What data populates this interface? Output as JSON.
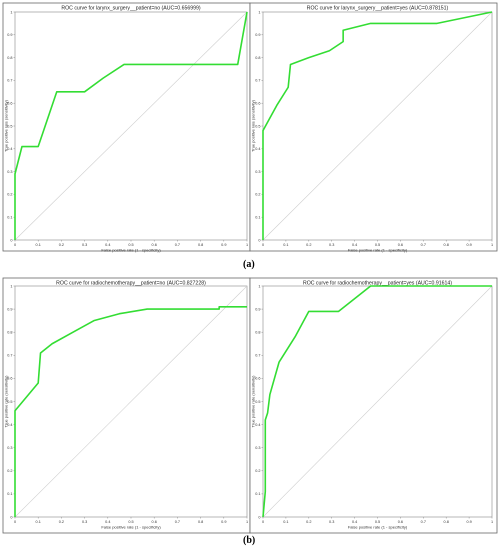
{
  "figure": {
    "panel_labels": [
      "(a)",
      "(b)"
    ]
  },
  "chart_data": [
    {
      "type": "line",
      "title": "ROC curve for larynx_surgery__patient=no (AUC=0.656999)",
      "xlabel": "False positive rate (1 - specificity)",
      "ylabel": "True positive rate (sensitivity)",
      "xlim": [
        0,
        1
      ],
      "ylim": [
        0,
        1
      ],
      "xticks": [
        "0",
        "0.1",
        "0.2",
        "0.3",
        "0.4",
        "0.5",
        "0.6",
        "0.7",
        "0.8",
        "0.9",
        "1"
      ],
      "yticks": [
        "0",
        "0.1",
        "0.2",
        "0.3",
        "0.4",
        "0.5",
        "0.6",
        "0.7",
        "0.8",
        "0.9",
        "1"
      ],
      "grid": false,
      "diagonal": true,
      "series": [
        {
          "color": "#33dd33",
          "x": [
            0,
            0,
            0.03,
            0.1,
            0.12,
            0.18,
            0.3,
            0.38,
            0.47,
            0.96,
            1
          ],
          "y": [
            0,
            0.29,
            0.41,
            0.41,
            0.47,
            0.65,
            0.65,
            0.71,
            0.77,
            0.77,
            1
          ]
        }
      ]
    },
    {
      "type": "line",
      "title": "ROC curve for larynx_surgery__patient=yes (AUC=0.878151)",
      "xlabel": "False positive rate (1 - specificity)",
      "ylabel": "True positive rate (sensitivity)",
      "xlim": [
        0,
        1
      ],
      "ylim": [
        0,
        1
      ],
      "xticks": [
        "0",
        "0.1",
        "0.2",
        "0.3",
        "0.4",
        "0.5",
        "0.6",
        "0.7",
        "0.8",
        "0.9",
        "1"
      ],
      "yticks": [
        "0",
        "0.1",
        "0.2",
        "0.3",
        "0.4",
        "0.5",
        "0.6",
        "0.7",
        "0.8",
        "0.9",
        "1"
      ],
      "grid": false,
      "diagonal": true,
      "series": [
        {
          "color": "#33dd33",
          "x": [
            0,
            0,
            0.06,
            0.11,
            0.12,
            0.2,
            0.29,
            0.35,
            0.35,
            0.47,
            0.76,
            1
          ],
          "y": [
            0,
            0.48,
            0.59,
            0.67,
            0.77,
            0.8,
            0.83,
            0.87,
            0.92,
            0.95,
            0.95,
            1
          ]
        }
      ]
    },
    {
      "type": "line",
      "title": "ROC curve for radiochemotherapy__patient=no (AUC=0.827228)",
      "xlabel": "False positive rate (1 - specificity)",
      "ylabel": "True positive rate (sensitivity)",
      "xlim": [
        0,
        1
      ],
      "ylim": [
        0,
        1
      ],
      "xticks": [
        "0",
        "0.1",
        "0.2",
        "0.3",
        "0.4",
        "0.5",
        "0.6",
        "0.7",
        "0.8",
        "0.9",
        "1"
      ],
      "yticks": [
        "0",
        "0.1",
        "0.2",
        "0.3",
        "0.4",
        "0.5",
        "0.6",
        "0.7",
        "0.8",
        "0.9",
        "1"
      ],
      "grid": false,
      "diagonal": true,
      "series": [
        {
          "color": "#33dd33",
          "x": [
            0,
            0,
            0.1,
            0.11,
            0.16,
            0.25,
            0.34,
            0.45,
            0.57,
            0.88,
            0.88,
            1
          ],
          "y": [
            0,
            0.46,
            0.58,
            0.71,
            0.75,
            0.8,
            0.85,
            0.88,
            0.9,
            0.9,
            0.91,
            0.91
          ]
        }
      ]
    },
    {
      "type": "line",
      "title": "ROC curve for radiochemotherapy__patient=yes (AUC=0.91614)",
      "xlabel": "False positive rate (1 - specificity)",
      "ylabel": "True positive rate (sensitivity)",
      "xlim": [
        0,
        1
      ],
      "ylim": [
        0,
        1
      ],
      "xticks": [
        "0",
        "0.1",
        "0.2",
        "0.3",
        "0.4",
        "0.5",
        "0.6",
        "0.7",
        "0.8",
        "0.9",
        "1"
      ],
      "yticks": [
        "0",
        "0.1",
        "0.2",
        "0.3",
        "0.4",
        "0.5",
        "0.6",
        "0.7",
        "0.8",
        "0.9",
        "1"
      ],
      "grid": false,
      "diagonal": true,
      "series": [
        {
          "color": "#33dd33",
          "x": [
            0,
            0.01,
            0.01,
            0.02,
            0.03,
            0.07,
            0.14,
            0.2,
            0.33,
            0.47,
            0.5,
            1
          ],
          "y": [
            0,
            0.11,
            0.42,
            0.45,
            0.53,
            0.67,
            0.78,
            0.89,
            0.89,
            1,
            1,
            1
          ]
        }
      ]
    }
  ]
}
